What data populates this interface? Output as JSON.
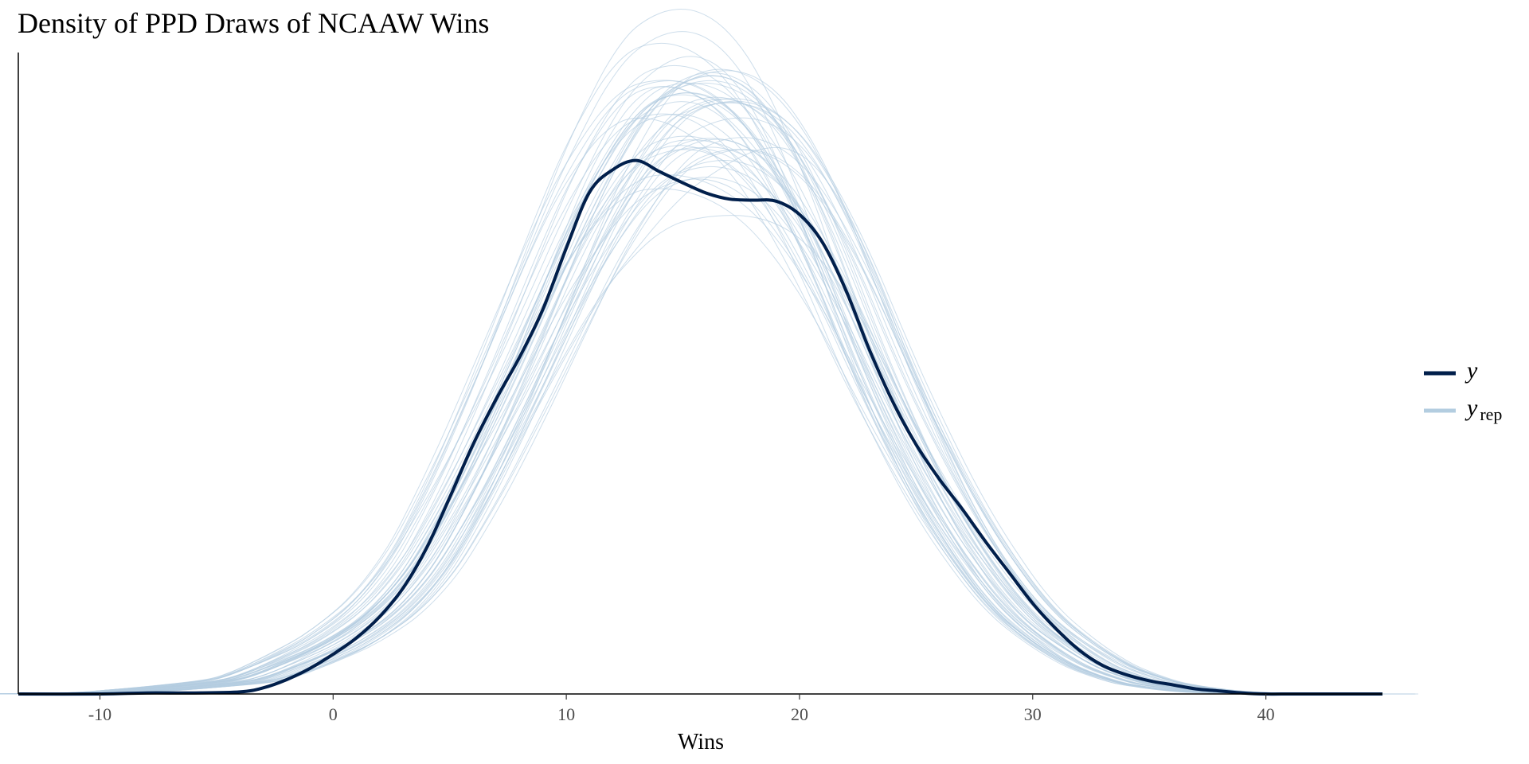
{
  "chart_data": {
    "type": "line",
    "title": "Density of PPD Draws of NCAAW Wins",
    "xlabel": "Wins",
    "ylabel": "",
    "xlim": [
      -13.5,
      45
    ],
    "ylim": [
      0,
      0.063
    ],
    "x_ticks": [
      -10,
      0,
      10,
      20,
      30,
      40
    ],
    "x_tick_labels": [
      "-10",
      "0",
      "10",
      "20",
      "30",
      "40"
    ],
    "y_axis_ticks_shown": false,
    "grid": false,
    "legend_position": "right",
    "legend": [
      {
        "label": "y",
        "subscript": "",
        "color": "#011f4b"
      },
      {
        "label": "y",
        "subscript": "rep",
        "color": "#b3cde0"
      }
    ],
    "observed": {
      "name": "y",
      "color": "#011f4b",
      "x": [
        -13.5,
        -10,
        -8,
        -6,
        -4,
        -3,
        -2,
        -1,
        0,
        1,
        2,
        3,
        4,
        5,
        6,
        7,
        8,
        9,
        10,
        11,
        12,
        13,
        14,
        15,
        16,
        17,
        18,
        19,
        20,
        21,
        22,
        23,
        24,
        25,
        26,
        27,
        28,
        29,
        30,
        31,
        32,
        33,
        34,
        35,
        36,
        37,
        38,
        39,
        40,
        41,
        42,
        43,
        45
      ],
      "y": [
        0,
        0,
        0.0001,
        0.0001,
        0.0002,
        0.0006,
        0.0014,
        0.0025,
        0.0039,
        0.0055,
        0.0076,
        0.0104,
        0.0143,
        0.0193,
        0.0245,
        0.029,
        0.0331,
        0.0378,
        0.0438,
        0.0493,
        0.0515,
        0.0524,
        0.0513,
        0.0502,
        0.0492,
        0.0486,
        0.0485,
        0.0484,
        0.0471,
        0.0443,
        0.0396,
        0.0338,
        0.0287,
        0.0245,
        0.0211,
        0.0181,
        0.0149,
        0.0119,
        0.0089,
        0.0064,
        0.0043,
        0.0028,
        0.0019,
        0.0013,
        0.0009,
        0.0005,
        0.0003,
        0.0001,
        0,
        0,
        0,
        0,
        0
      ]
    },
    "replicates": {
      "name": "y_rep",
      "color": "#b3cde0",
      "count": 50,
      "mean_y": [
        0,
        0.0001,
        0.0004,
        0.0008,
        0.0013,
        0.0019,
        0.0028,
        0.0038,
        0.0049,
        0.0063,
        0.008,
        0.0103,
        0.0133,
        0.0172,
        0.0215,
        0.0262,
        0.0311,
        0.0362,
        0.0413,
        0.0461,
        0.0502,
        0.0537,
        0.0561,
        0.0572,
        0.0575,
        0.057,
        0.0556,
        0.0532,
        0.0497,
        0.0454,
        0.0405,
        0.0351,
        0.0299,
        0.0251,
        0.0206,
        0.0166,
        0.0131,
        0.01,
        0.0075,
        0.0056,
        0.004,
        0.0027,
        0.0018,
        0.0011,
        0.0007,
        0.0004,
        0.0002,
        0.0001,
        0,
        0,
        0,
        0,
        0
      ]
    }
  }
}
